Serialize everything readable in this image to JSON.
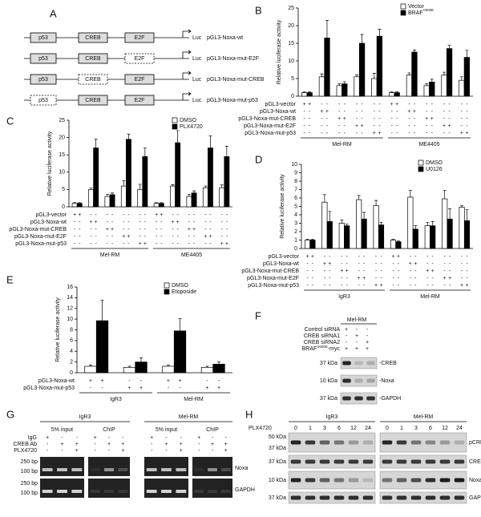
{
  "chart_data": [
    {
      "type": "bar",
      "letter": "B",
      "ylabel": "Relative luciferase activity",
      "ylim": [
        0,
        25
      ],
      "yticks": [
        0,
        5,
        10,
        15,
        20,
        25
      ],
      "groups": [
        "Mel-RM",
        "ME4405"
      ],
      "series": [
        {
          "name": "Vector",
          "color": "#ffffff",
          "values": [
            1,
            5.5,
            3,
            5.5,
            5,
            1,
            6,
            3,
            6,
            4.5
          ],
          "errors": [
            0.2,
            0.8,
            0.5,
            0.5,
            1.5,
            0.2,
            0.6,
            0.5,
            0.8,
            1
          ]
        },
        {
          "name": "BRAF",
          "name_superscript": "V600E",
          "color": "#000000",
          "values": [
            1,
            16.5,
            3.5,
            15,
            17,
            1,
            12.5,
            4,
            13.5,
            11
          ],
          "errors": [
            0.2,
            5,
            0.6,
            2.5,
            2,
            0.2,
            0.6,
            0.8,
            1,
            2
          ]
        }
      ],
      "conditions": [
        {
          "label": "pGL3-vector",
          "signs": [
            "+",
            "+",
            "-",
            "-",
            "-",
            "-",
            "-",
            "-",
            "-",
            "-",
            "+",
            "+",
            "-",
            "-",
            "-",
            "-",
            "-",
            "-",
            "-",
            "-"
          ]
        },
        {
          "label": "pGL3-Noxa-wt",
          "signs": [
            "-",
            "-",
            "+",
            "+",
            "-",
            "-",
            "-",
            "-",
            "-",
            "-",
            "-",
            "-",
            "+",
            "+",
            "-",
            "-",
            "-",
            "-",
            "-",
            "-"
          ]
        },
        {
          "label": "pGL3-Noxa-mut-CREB",
          "signs": [
            "-",
            "-",
            "-",
            "-",
            "+",
            "+",
            "-",
            "-",
            "-",
            "-",
            "-",
            "-",
            "-",
            "-",
            "+",
            "+",
            "-",
            "-",
            "-",
            "-"
          ]
        },
        {
          "label": "pGL3-Noxa-mut-E2F",
          "signs": [
            "-",
            "-",
            "-",
            "-",
            "-",
            "-",
            "+",
            "+",
            "-",
            "-",
            "-",
            "-",
            "-",
            "-",
            "-",
            "-",
            "+",
            "+",
            "-",
            "-"
          ]
        },
        {
          "label": "pGL3-Noxa-mut-p53",
          "signs": [
            "-",
            "-",
            "-",
            "-",
            "-",
            "-",
            "-",
            "-",
            "+",
            "+",
            "-",
            "-",
            "-",
            "-",
            "-",
            "-",
            "-",
            "-",
            "+",
            "+"
          ]
        }
      ]
    },
    {
      "type": "bar",
      "letter": "C",
      "ylabel": "Relative luciferase activity",
      "ylim": [
        0,
        25
      ],
      "yticks": [
        0,
        5,
        10,
        15,
        20,
        25
      ],
      "groups": [
        "Mel-RM",
        "ME4405"
      ],
      "series": [
        {
          "name": "DMSO",
          "color": "#ffffff",
          "values": [
            1,
            5,
            3,
            6,
            5,
            1,
            6,
            3,
            5.5,
            5.5
          ],
          "errors": [
            0.2,
            0.4,
            0.6,
            1.5,
            1.5,
            0.2,
            0.4,
            0.6,
            0.5,
            0.8
          ]
        },
        {
          "name": "PLX4720",
          "color": "#000000",
          "values": [
            1,
            17,
            3.5,
            19.5,
            14.5,
            1,
            18.5,
            4,
            17,
            14.5
          ],
          "errors": [
            0.2,
            2.5,
            0.5,
            1.5,
            2.5,
            0.2,
            3.5,
            0.6,
            3.5,
            3
          ]
        }
      ],
      "conditions": [
        {
          "label": "pGL3-vector",
          "signs": [
            "+",
            "+",
            "-",
            "-",
            "-",
            "-",
            "-",
            "-",
            "-",
            "-",
            "+",
            "+",
            "-",
            "-",
            "-",
            "-",
            "-",
            "-",
            "-",
            "-"
          ]
        },
        {
          "label": "pGL3-Noxa-wt",
          "signs": [
            "-",
            "-",
            "+",
            "+",
            "-",
            "-",
            "-",
            "-",
            "-",
            "-",
            "-",
            "-",
            "+",
            "+",
            "-",
            "-",
            "-",
            "-",
            "-",
            "-"
          ]
        },
        {
          "label": "pGL3-Noxa-mut-CREB",
          "signs": [
            "-",
            "-",
            "-",
            "-",
            "+",
            "+",
            "-",
            "-",
            "-",
            "-",
            "-",
            "-",
            "-",
            "-",
            "+",
            "+",
            "-",
            "-",
            "-",
            "-"
          ]
        },
        {
          "label": "pGL3-Noxa-mut-E2F",
          "signs": [
            "-",
            "-",
            "-",
            "-",
            "-",
            "-",
            "+",
            "+",
            "-",
            "-",
            "-",
            "-",
            "-",
            "-",
            "-",
            "-",
            "+",
            "+",
            "-",
            "-"
          ]
        },
        {
          "label": "pGL3-Noxa-mut-p53",
          "signs": [
            "-",
            "-",
            "-",
            "-",
            "-",
            "-",
            "-",
            "-",
            "+",
            "+",
            "-",
            "-",
            "-",
            "-",
            "-",
            "-",
            "-",
            "-",
            "+",
            "+"
          ]
        }
      ]
    },
    {
      "type": "bar",
      "letter": "D",
      "ylabel": "Relative luciferase activity",
      "ylim": [
        0,
        10
      ],
      "yticks": [
        0,
        1,
        2,
        3,
        4,
        5,
        6,
        7,
        8,
        9,
        10
      ],
      "groups": [
        "IgR3",
        "Mel-RM"
      ],
      "series": [
        {
          "name": "DMSO",
          "color": "#ffffff",
          "values": [
            1,
            5.5,
            3,
            5.8,
            5.1,
            1,
            6.1,
            2.7,
            5.9,
            4.9
          ],
          "errors": [
            0.1,
            0.9,
            0.4,
            0.5,
            0.6,
            0.1,
            0.8,
            0.4,
            1,
            0.2
          ]
        },
        {
          "name": "U0126",
          "color": "#000000",
          "values": [
            1,
            3.2,
            2.7,
            3.5,
            2.8,
            0.8,
            2.3,
            2.7,
            3.5,
            3.3
          ],
          "errors": [
            0.1,
            1.2,
            0.2,
            0.8,
            0.3,
            0.1,
            0.4,
            0.5,
            1.2,
            1.3
          ]
        }
      ],
      "conditions": [
        {
          "label": "pGL3-vector",
          "signs": [
            "+",
            "+",
            "-",
            "-",
            "-",
            "-",
            "-",
            "-",
            "-",
            "-",
            "+",
            "+",
            "-",
            "-",
            "-",
            "-",
            "-",
            "-",
            "-",
            "-"
          ]
        },
        {
          "label": "pGL3-Noxa-wt",
          "signs": [
            "-",
            "-",
            "+",
            "+",
            "-",
            "-",
            "-",
            "-",
            "-",
            "-",
            "-",
            "-",
            "+",
            "+",
            "-",
            "-",
            "-",
            "-",
            "-",
            "-"
          ]
        },
        {
          "label": "pGL3-Noxa-mut-CREB",
          "signs": [
            "-",
            "-",
            "-",
            "-",
            "+",
            "+",
            "-",
            "-",
            "-",
            "-",
            "-",
            "-",
            "-",
            "-",
            "+",
            "+",
            "-",
            "-",
            "-",
            "-"
          ]
        },
        {
          "label": "pGL3-Noxa-mut-E2F",
          "signs": [
            "-",
            "-",
            "-",
            "-",
            "-",
            "-",
            "+",
            "+",
            "-",
            "-",
            "-",
            "-",
            "-",
            "-",
            "-",
            "-",
            "+",
            "+",
            "-",
            "-"
          ]
        },
        {
          "label": "pGL3-Noxa-mut-p53",
          "signs": [
            "-",
            "-",
            "-",
            "-",
            "-",
            "-",
            "-",
            "-",
            "+",
            "+",
            "-",
            "-",
            "-",
            "-",
            "-",
            "-",
            "-",
            "-",
            "+",
            "+"
          ]
        }
      ]
    },
    {
      "type": "bar",
      "letter": "E",
      "ylabel": "Relative luciferase activity",
      "ylim": [
        0,
        16
      ],
      "yticks": [
        0,
        2,
        4,
        6,
        8,
        10,
        12,
        14,
        16
      ],
      "groups": [
        "IgR3",
        "Mel-RM"
      ],
      "series": [
        {
          "name": "DMSO",
          "color": "#ffffff",
          "values": [
            1.2,
            1,
            1.2,
            1
          ],
          "errors": [
            0.2,
            0.2,
            0.2,
            0.2
          ]
        },
        {
          "name": "Etoposide",
          "color": "#000000",
          "values": [
            9.7,
            2,
            7.8,
            1.6
          ],
          "errors": [
            3.8,
            0.8,
            2.3,
            0.4
          ]
        }
      ],
      "conditions": [
        {
          "label": "pGL3-Noxa-wt",
          "signs": [
            "+",
            "+",
            "-",
            "-",
            "+",
            "+",
            "-",
            "-"
          ]
        },
        {
          "label": "pGL3-Noxa-mut-p53",
          "signs": [
            "-",
            "-",
            "+",
            "+",
            "-",
            "-",
            "+",
            "+"
          ]
        }
      ]
    }
  ],
  "panel_a": {
    "letter": "A",
    "elements": [
      "p53",
      "CREB",
      "E2F"
    ],
    "reporter": "Luc",
    "constructs": [
      {
        "label": "pGL3-Noxa-wt"
      },
      {
        "label": "pGL3-Noxa-mut-E2F",
        "mutated": "E2F"
      },
      {
        "label": "pGL3-Noxa-mut-CREB",
        "mutated": "CREB"
      },
      {
        "label": "pGL3-Noxa-mut-p53",
        "mutated": "p53"
      }
    ]
  },
  "panel_f": {
    "letter": "F",
    "title": "Mel-RM",
    "rows": [
      {
        "label": "Control siRNA",
        "signs": [
          "+",
          "-",
          "-"
        ]
      },
      {
        "label": "CREB siRNA1",
        "signs": [
          "-",
          "+",
          "-"
        ]
      },
      {
        "label": "CREB siRNA2",
        "signs": [
          "-",
          "-",
          "+"
        ]
      },
      {
        "label": "BRAF",
        "superscript": "V600E",
        "suffix": "-myc",
        "signs": [
          "+",
          "+",
          "+"
        ]
      }
    ],
    "bands": [
      {
        "marker": "37 kDa",
        "label": "-CREB"
      },
      {
        "marker": "10 kDa",
        "label": "-Noxa"
      },
      {
        "marker": "37 kDa",
        "label": "-GAPDH"
      }
    ]
  },
  "panel_g": {
    "letter": "G",
    "cells": [
      "IgR3",
      "Mel-RM"
    ],
    "sections": [
      "5% input",
      "ChIP"
    ],
    "rows": [
      {
        "label": "IgG",
        "signs": [
          "+",
          "-",
          "-",
          "+",
          "-",
          "-",
          "+",
          "-",
          "-",
          "+",
          "-",
          "-"
        ]
      },
      {
        "label": "CREB Ab",
        "signs": [
          "-",
          "+",
          "+",
          "-",
          "+",
          "+",
          "-",
          "+",
          "+",
          "-",
          "+",
          "+"
        ]
      },
      {
        "label": "PLX4720",
        "signs": [
          "-",
          "-",
          "+",
          "-",
          "-",
          "+",
          "-",
          "-",
          "+",
          "-",
          "-",
          "+"
        ]
      }
    ],
    "bands": [
      {
        "label": "Noxa",
        "markers": [
          "250 bp",
          "100 bp"
        ]
      },
      {
        "label": "GAPDH",
        "markers": [
          "250 bp",
          "100 bp"
        ]
      }
    ]
  },
  "panel_h": {
    "letter": "H",
    "treatment": "PLX4720",
    "cells": [
      "IgR3",
      "Mel-RM"
    ],
    "times": [
      "0",
      "1",
      "3",
      "6",
      "12",
      "24"
    ],
    "blots": [
      {
        "label": "pCREB",
        "markers": [
          "50 kDa",
          "37 kDa"
        ]
      },
      {
        "label": "CREB",
        "markers": [
          "37 kDa"
        ]
      },
      {
        "label": "Noxa",
        "markers": [
          "10 kDa"
        ]
      },
      {
        "label": "GAPDH",
        "markers": [
          "37 kDa"
        ]
      }
    ]
  }
}
